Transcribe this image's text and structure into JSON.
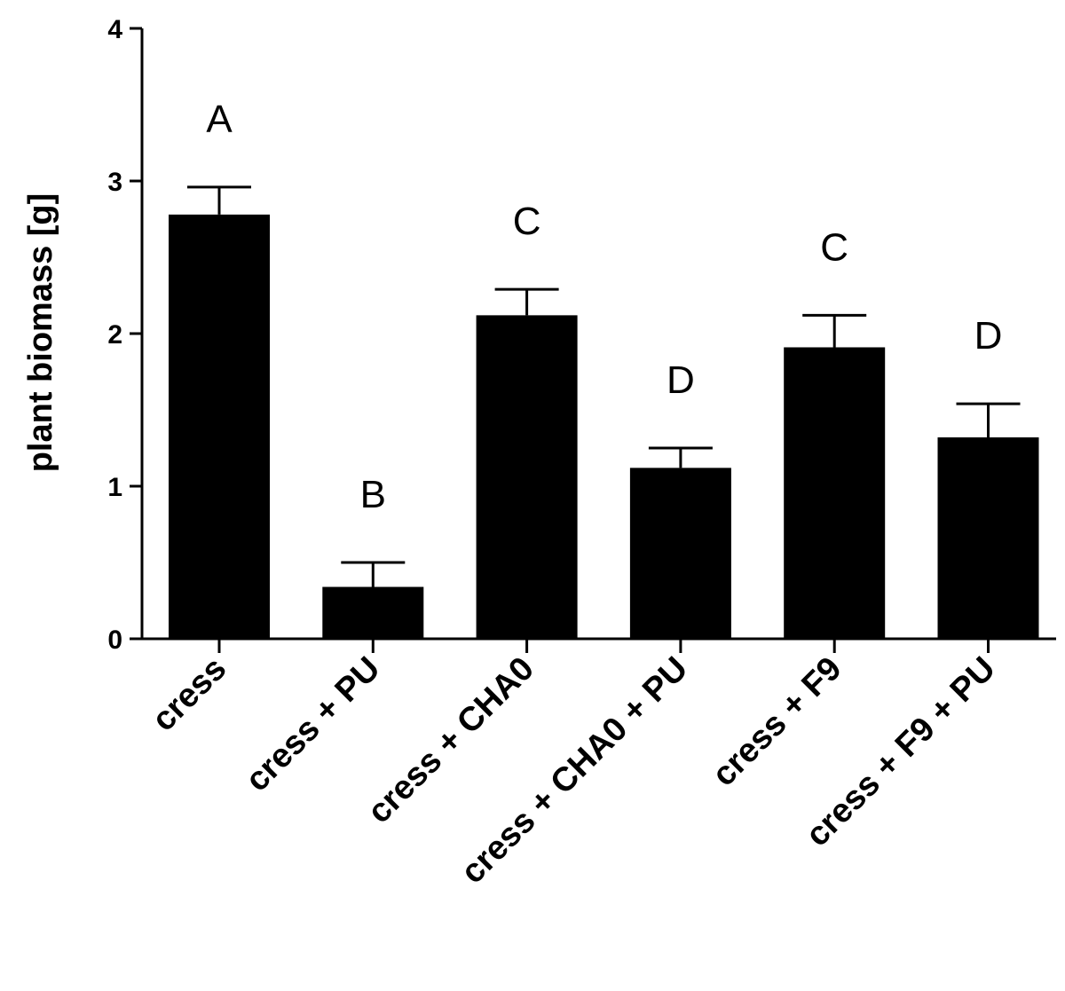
{
  "chart_data": {
    "type": "bar",
    "title": "",
    "xlabel": "",
    "ylabel": "plant biomass [g]",
    "ylim": [
      0,
      4
    ],
    "yticks": [
      0,
      1,
      2,
      3,
      4
    ],
    "categories": [
      "cress",
      "cress + PU",
      "cress + CHA0",
      "cress + CHA0 + PU",
      "cress + F9",
      "cress + F9 + PU"
    ],
    "values": [
      2.78,
      0.34,
      2.12,
      1.12,
      1.91,
      1.32
    ],
    "error_upper": [
      0.18,
      0.16,
      0.17,
      0.13,
      0.21,
      0.22
    ],
    "significance_letters": [
      "A",
      "B",
      "C",
      "D",
      "C",
      "D"
    ],
    "bar_color": "#000000",
    "grid": false,
    "legend": "none"
  }
}
